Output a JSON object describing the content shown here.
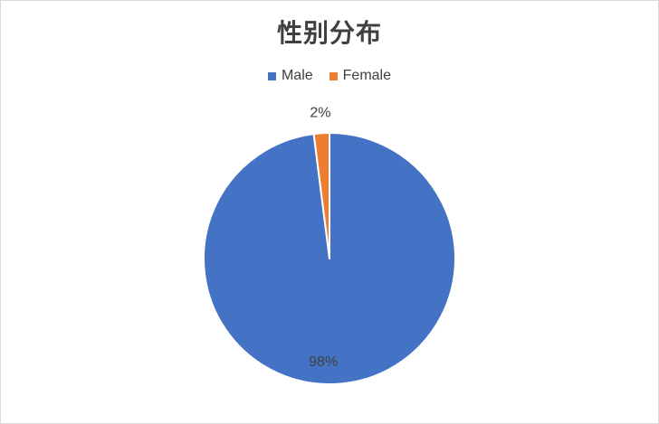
{
  "chart_data": {
    "type": "pie",
    "title": "性别分布",
    "categories": [
      "Male",
      "Female"
    ],
    "values": [
      98,
      2
    ],
    "data_labels": [
      "98%",
      "2%"
    ],
    "colors": [
      "#4472c4",
      "#ed7d31"
    ],
    "legend_position": "top"
  },
  "legend": {
    "items": [
      {
        "label": "Male",
        "color": "#4472c4"
      },
      {
        "label": "Female",
        "color": "#ed7d31"
      }
    ]
  }
}
